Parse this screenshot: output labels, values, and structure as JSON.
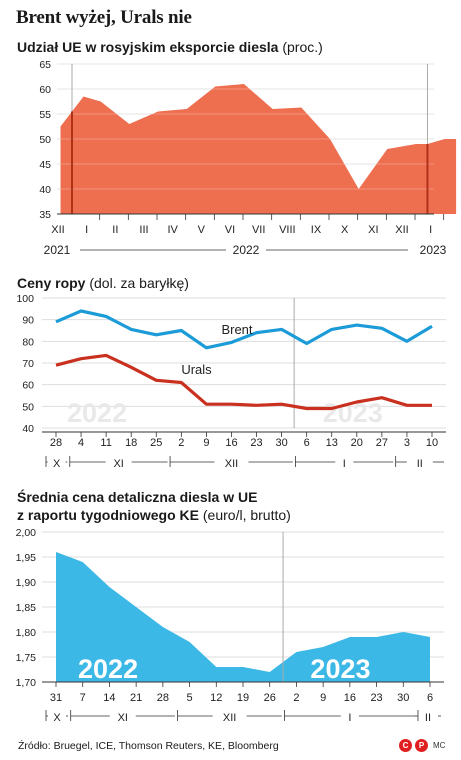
{
  "main_title": "Brent wyżej, Urals nie",
  "source": "Źródło: Bruegel, ICE, Thomson Reuters, KE, Bloomberg",
  "logo": {
    "letters": "CP",
    "suffix": "MC",
    "color": "#e02020"
  },
  "colors": {
    "orange": "#ee6f50",
    "blue": "#1b9bd7",
    "red": "#c9301f",
    "light_blue": "#3cb8e6",
    "grid": "#dddddd",
    "divider": "#aaaaaa"
  },
  "chart_data": [
    {
      "type": "area",
      "title_bold": "Udział UE w rosyjskim eksporcie diesla",
      "title_unit": "(proc.)",
      "ylim": [
        35,
        65
      ],
      "yticks": [
        35,
        40,
        45,
        50,
        55,
        60,
        65
      ],
      "grid": true,
      "categories": [
        "XII",
        "I",
        "II",
        "III",
        "IV",
        "V",
        "VI",
        "VII",
        "VIII",
        "IX",
        "X",
        "XI",
        "XII",
        "I"
      ],
      "year_labels": [
        "2021",
        "2022",
        "2023"
      ],
      "x": [
        -0.4,
        0.0,
        0.4,
        1.0,
        2.0,
        3.0,
        4.0,
        5.0,
        6.0,
        7.0,
        8.0,
        9.0,
        10.0,
        11.0,
        12.0,
        12.4,
        13.0,
        13.4
      ],
      "values": [
        52.5,
        55.5,
        58.5,
        57.5,
        53,
        55.5,
        56,
        60.5,
        61,
        56,
        56.3,
        50,
        40,
        48,
        49,
        49,
        50,
        50
      ],
      "dividers": [
        0.0,
        12.4
      ]
    },
    {
      "type": "line",
      "title_bold": "Ceny ropy",
      "title_unit": "(dol. za baryłkę)",
      "ylim": [
        40,
        100
      ],
      "yticks": [
        40,
        50,
        60,
        70,
        80,
        90,
        100
      ],
      "grid": true,
      "categories": [
        "28",
        "4",
        "11",
        "18",
        "25",
        "2",
        "9",
        "16",
        "23",
        "30",
        "6",
        "13",
        "20",
        "27",
        "3",
        "10"
      ],
      "months": [
        {
          "label": "X",
          "from": 0,
          "to": 0.45
        },
        {
          "label": "XI",
          "from": 0.55,
          "to": 4.45
        },
        {
          "label": "XII",
          "from": 4.55,
          "to": 9.45
        },
        {
          "label": "I",
          "from": 9.55,
          "to": 13.45
        },
        {
          "label": "II",
          "from": 13.55,
          "to": 15
        }
      ],
      "watermarks": [
        {
          "text": "2022",
          "at": 1.0
        },
        {
          "text": "2023",
          "at": 11.2
        }
      ],
      "divider": 9.5,
      "series": [
        {
          "name": "Brent",
          "color": "#1b9bd7",
          "x": [
            0,
            1,
            2,
            3,
            4,
            5,
            6,
            7,
            8,
            9,
            10,
            11,
            12,
            13,
            14,
            15
          ],
          "values": [
            89,
            94,
            91.5,
            85.5,
            83,
            85,
            77,
            79.5,
            84,
            85.5,
            79,
            85.5,
            87.5,
            86,
            80,
            87
          ]
        },
        {
          "name": "Urals",
          "color": "#c9301f",
          "x": [
            0,
            1,
            2,
            3,
            4,
            5,
            6,
            7,
            8,
            9,
            10,
            11,
            12,
            13,
            14,
            15
          ],
          "values": [
            69,
            72,
            73.5,
            68,
            62,
            61,
            51,
            51,
            50.5,
            51,
            49,
            49,
            52,
            54,
            50.5,
            50.5
          ]
        }
      ],
      "series_labels": [
        {
          "series": 0,
          "x": 6.6,
          "y": 83.5
        },
        {
          "series": 1,
          "x": 5.0,
          "y": 65
        }
      ]
    },
    {
      "type": "area",
      "title_bold_line1": "Średnia cena detaliczna diesla w UE",
      "title_bold_line2": "z raportu tygodniowego KE",
      "title_unit": "(euro/l, brutto)",
      "ylim": [
        1.7,
        2.0
      ],
      "yticks": [
        "1,70",
        "1,75",
        "1,80",
        "1,85",
        "1,90",
        "1,95",
        "2,00"
      ],
      "ytick_values": [
        1.7,
        1.75,
        1.8,
        1.85,
        1.9,
        1.95,
        2.0
      ],
      "grid": true,
      "categories": [
        "31",
        "7",
        "14",
        "21",
        "28",
        "5",
        "12",
        "19",
        "26",
        "2",
        "9",
        "16",
        "23",
        "30",
        "6"
      ],
      "months": [
        {
          "label": "X",
          "from": 0,
          "to": 0.45
        },
        {
          "label": "XI",
          "from": 0.55,
          "to": 4.45
        },
        {
          "label": "XII",
          "from": 4.55,
          "to": 8.45
        },
        {
          "label": "I",
          "from": 8.55,
          "to": 13.45
        },
        {
          "label": "II",
          "from": 13.55,
          "to": 14
        }
      ],
      "watermarks": [
        {
          "text": "2022",
          "at": 1.2
        },
        {
          "text": "2023",
          "at": 9.9
        }
      ],
      "divider": 8.5,
      "x": [
        0,
        1,
        2,
        3,
        4,
        5,
        6,
        7,
        8,
        9,
        10,
        11,
        12,
        13,
        14
      ],
      "values": [
        1.96,
        1.94,
        1.89,
        1.85,
        1.81,
        1.78,
        1.73,
        1.73,
        1.72,
        1.76,
        1.77,
        1.79,
        1.79,
        1.8,
        1.79
      ]
    }
  ]
}
